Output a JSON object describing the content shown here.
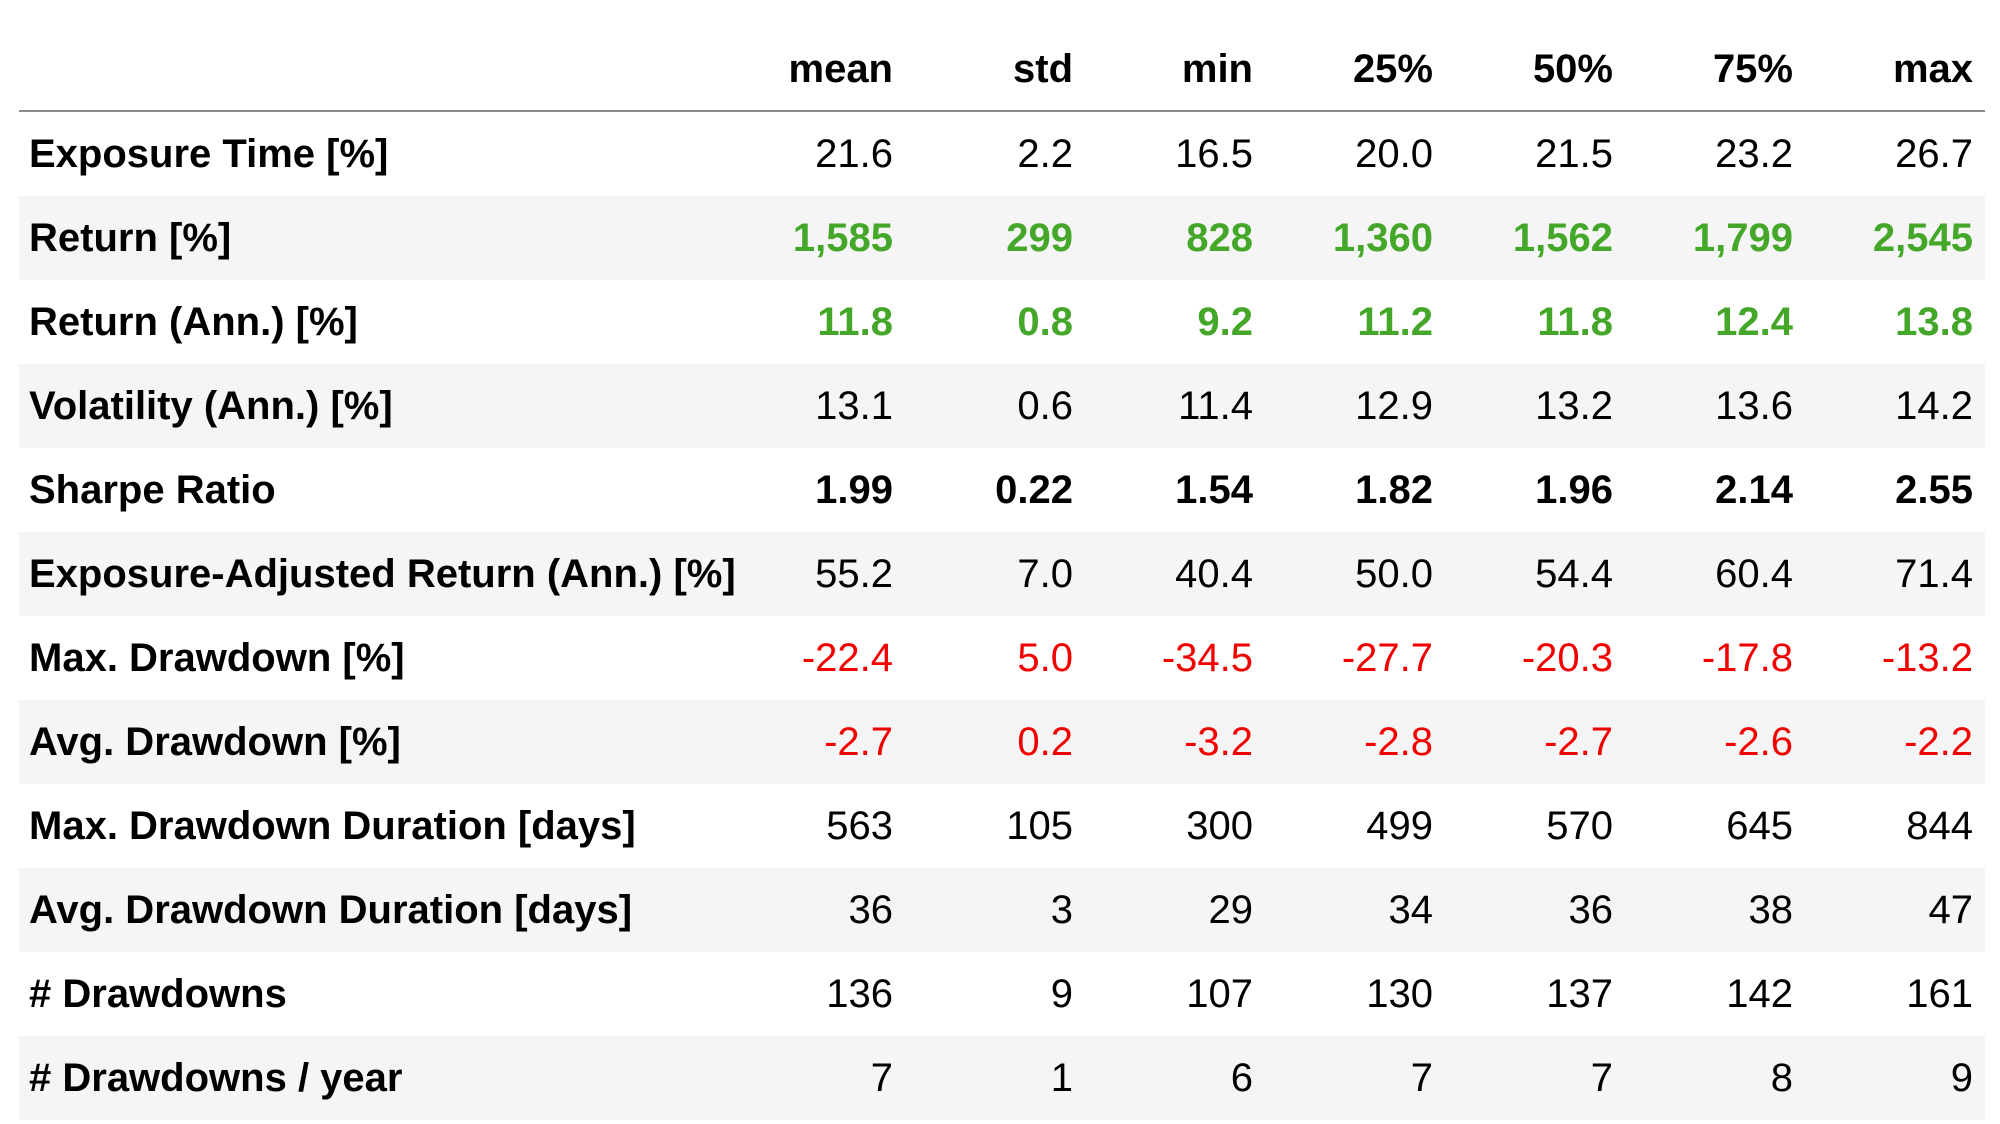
{
  "chart_data": {
    "type": "table",
    "columns": [
      "",
      "mean",
      "std",
      "min",
      "25%",
      "50%",
      "75%",
      "max"
    ],
    "colors": {
      "green": "#45a72a",
      "red": "#f20000",
      "text": "#000000",
      "stripe": "#f5f5f5"
    },
    "rows": [
      {
        "label": "Exposure Time [%]",
        "tone": "plain",
        "values": [
          "21.6",
          "2.2",
          "16.5",
          "20.0",
          "21.5",
          "23.2",
          "26.7"
        ]
      },
      {
        "label": "Return [%]",
        "tone": "green",
        "values": [
          "1,585",
          "299",
          "828",
          "1,360",
          "1,562",
          "1,799",
          "2,545"
        ]
      },
      {
        "label": "Return (Ann.) [%]",
        "tone": "green",
        "values": [
          "11.8",
          "0.8",
          "9.2",
          "11.2",
          "11.8",
          "12.4",
          "13.8"
        ]
      },
      {
        "label": "Volatility (Ann.) [%]",
        "tone": "plain",
        "values": [
          "13.1",
          "0.6",
          "11.4",
          "12.9",
          "13.2",
          "13.6",
          "14.2"
        ]
      },
      {
        "label": "Sharpe Ratio",
        "tone": "bold",
        "values": [
          "1.99",
          "0.22",
          "1.54",
          "1.82",
          "1.96",
          "2.14",
          "2.55"
        ]
      },
      {
        "label": "Exposure-Adjusted Return (Ann.) [%]",
        "tone": "plain",
        "values": [
          "55.2",
          "7.0",
          "40.4",
          "50.0",
          "54.4",
          "60.4",
          "71.4"
        ]
      },
      {
        "label": "Max. Drawdown [%]",
        "tone": "red",
        "values": [
          "-22.4",
          "5.0",
          "-34.5",
          "-27.7",
          "-20.3",
          "-17.8",
          "-13.2"
        ]
      },
      {
        "label": "Avg. Drawdown [%]",
        "tone": "red",
        "values": [
          "-2.7",
          "0.2",
          "-3.2",
          "-2.8",
          "-2.7",
          "-2.6",
          "-2.2"
        ]
      },
      {
        "label": "Max. Drawdown Duration [days]",
        "tone": "plain",
        "values": [
          "563",
          "105",
          "300",
          "499",
          "570",
          "645",
          "844"
        ]
      },
      {
        "label": "Avg. Drawdown Duration [days]",
        "tone": "plain",
        "values": [
          "36",
          "3",
          "29",
          "34",
          "36",
          "38",
          "47"
        ]
      },
      {
        "label": "# Drawdowns",
        "tone": "plain",
        "values": [
          "136",
          "9",
          "107",
          "130",
          "137",
          "142",
          "161"
        ]
      },
      {
        "label": "# Drawdowns / year",
        "tone": "plain",
        "values": [
          "7",
          "1",
          "6",
          "7",
          "7",
          "8",
          "9"
        ]
      }
    ]
  }
}
